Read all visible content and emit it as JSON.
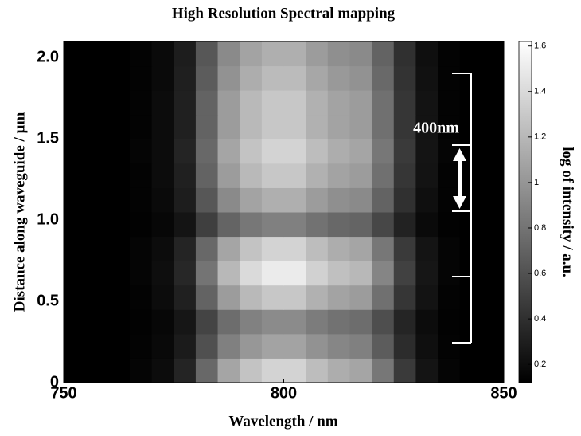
{
  "chart_data": {
    "type": "heatmap",
    "title": "High Resolution Spectral mapping",
    "x_label": "Wavelength / nm",
    "y_label": "Distance along waveguide / µm",
    "colorbar_label": "log of intensity / a.u.",
    "annotation": "400nm",
    "colormap": "gray",
    "xbins": [
      750,
      755,
      760,
      765,
      770,
      775,
      780,
      785,
      790,
      795,
      800,
      805,
      810,
      815,
      820,
      825,
      830,
      835,
      840,
      845,
      850
    ],
    "ybins": [
      0,
      0.15,
      0.3,
      0.45,
      0.6,
      0.75,
      0.9,
      1.05,
      1.2,
      1.35,
      1.5,
      1.65,
      1.8,
      1.95,
      2.1
    ],
    "z": [
      [
        0.1,
        0.1,
        0.12,
        0.15,
        0.19,
        0.33,
        0.73,
        1.09,
        1.27,
        1.36,
        1.36,
        1.23,
        1.14,
        1.09,
        0.82,
        0.46,
        0.24,
        0.15,
        0.12,
        0.1
      ],
      [
        0.1,
        0.1,
        0.11,
        0.14,
        0.17,
        0.28,
        0.59,
        0.87,
        1.01,
        1.08,
        1.08,
        0.98,
        0.91,
        0.87,
        0.66,
        0.38,
        0.21,
        0.14,
        0.11,
        0.1
      ],
      [
        0.1,
        0.1,
        0.11,
        0.13,
        0.16,
        0.25,
        0.52,
        0.76,
        0.88,
        0.94,
        0.94,
        0.85,
        0.79,
        0.76,
        0.58,
        0.34,
        0.19,
        0.13,
        0.11,
        0.1
      ],
      [
        0.1,
        0.1,
        0.12,
        0.14,
        0.19,
        0.31,
        0.7,
        1.04,
        1.21,
        1.29,
        1.29,
        1.16,
        1.08,
        1.04,
        0.78,
        0.44,
        0.23,
        0.14,
        0.12,
        0.1
      ],
      [
        0.1,
        0.1,
        0.12,
        0.15,
        0.2,
        0.35,
        0.8,
        1.2,
        1.4,
        1.5,
        1.5,
        1.35,
        1.25,
        1.2,
        0.9,
        0.5,
        0.25,
        0.15,
        0.12,
        0.1
      ],
      [
        0.1,
        0.1,
        0.12,
        0.15,
        0.19,
        0.33,
        0.73,
        1.09,
        1.27,
        1.36,
        1.36,
        1.23,
        1.14,
        1.09,
        0.82,
        0.46,
        0.24,
        0.15,
        0.12,
        0.1
      ],
      [
        0.1,
        0.1,
        0.11,
        0.13,
        0.16,
        0.24,
        0.49,
        0.71,
        0.82,
        0.87,
        0.87,
        0.79,
        0.73,
        0.71,
        0.54,
        0.32,
        0.18,
        0.13,
        0.11,
        0.1
      ],
      [
        0.1,
        0.1,
        0.12,
        0.14,
        0.18,
        0.29,
        0.63,
        0.93,
        1.08,
        1.15,
        1.15,
        1.04,
        0.96,
        0.93,
        0.7,
        0.4,
        0.21,
        0.14,
        0.12,
        0.1
      ],
      [
        0.1,
        0.1,
        0.12,
        0.14,
        0.19,
        0.31,
        0.7,
        1.04,
        1.21,
        1.29,
        1.29,
        1.16,
        1.08,
        1.04,
        0.78,
        0.44,
        0.23,
        0.14,
        0.12,
        0.1
      ],
      [
        0.1,
        0.1,
        0.12,
        0.15,
        0.19,
        0.33,
        0.73,
        1.09,
        1.27,
        1.36,
        1.36,
        1.23,
        1.14,
        1.09,
        0.82,
        0.46,
        0.24,
        0.15,
        0.12,
        0.1
      ],
      [
        0.1,
        0.1,
        0.12,
        0.14,
        0.19,
        0.31,
        0.7,
        1.04,
        1.21,
        1.29,
        1.29,
        1.16,
        1.08,
        1.04,
        0.78,
        0.44,
        0.23,
        0.14,
        0.12,
        0.1
      ],
      [
        0.1,
        0.1,
        0.12,
        0.14,
        0.19,
        0.31,
        0.7,
        1.04,
        1.21,
        1.29,
        1.29,
        1.16,
        1.08,
        1.04,
        0.78,
        0.44,
        0.23,
        0.14,
        0.12,
        0.1
      ],
      [
        0.1,
        0.1,
        0.12,
        0.14,
        0.18,
        0.3,
        0.66,
        0.98,
        1.14,
        1.22,
        1.22,
        1.1,
        1.02,
        0.98,
        0.74,
        0.42,
        0.22,
        0.14,
        0.12,
        0.1
      ],
      [
        0.1,
        0.1,
        0.12,
        0.14,
        0.18,
        0.29,
        0.63,
        0.93,
        1.08,
        1.15,
        1.15,
        1.04,
        0.96,
        0.93,
        0.7,
        0.4,
        0.21,
        0.14,
        0.12,
        0.1
      ]
    ],
    "xlim": [
      750,
      850
    ],
    "xticks": [
      750,
      800,
      850
    ],
    "ylim": [
      0,
      2.1
    ],
    "yticks": [
      0,
      0.5,
      {
        "value": 1,
        "label": "1.0"
      },
      1.5,
      {
        "value": 2,
        "label": "2.0"
      }
    ],
    "clim": [
      0.12,
      1.62
    ],
    "cticks": [
      0.2,
      0.4,
      0.6,
      0.8,
      1,
      1.2,
      1.4,
      1.6
    ]
  }
}
